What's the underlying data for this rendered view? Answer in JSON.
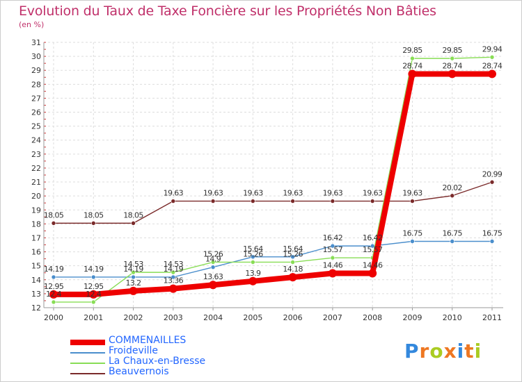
{
  "chart_data": {
    "type": "line",
    "title": "Evolution du Taux de Taxe Foncière sur les Propriétés Non Bâties",
    "unit_label": "(en %)",
    "categories": [
      "2000",
      "2001",
      "2002",
      "2003",
      "2004",
      "2005",
      "2006",
      "2007",
      "2008",
      "2009",
      "2010",
      "2011"
    ],
    "ylim": [
      12,
      31
    ],
    "yticks": [
      "12",
      "13",
      "14",
      "15",
      "16",
      "17",
      "18",
      "19",
      "20",
      "21",
      "22",
      "23",
      "24",
      "25",
      "26",
      "27",
      "28",
      "29",
      "30",
      "31"
    ],
    "series": [
      {
        "name": "Beauvernois",
        "color": "#7a2a2a",
        "values": [
          18.05,
          18.05,
          18.05,
          19.63,
          19.63,
          19.63,
          19.63,
          19.63,
          19.63,
          19.63,
          20.02,
          20.99
        ],
        "labels": [
          "18.05",
          "18.05",
          "18.05",
          "19.63",
          "19.63",
          "19.63",
          "19.63",
          "19.63",
          "19.63",
          "19.63",
          "20.02",
          "20.99"
        ]
      },
      {
        "name": "Froideville",
        "color": "#4a8ecc",
        "values": [
          14.19,
          14.19,
          14.19,
          14.19,
          14.9,
          15.64,
          15.64,
          16.42,
          16.42,
          16.75,
          16.75,
          16.75
        ],
        "labels": [
          "14.19",
          "14.19",
          "14.19",
          "14.19",
          "14.9",
          "15.64",
          "15.64",
          "16.42",
          "16.42",
          "16.75",
          "16.75",
          "16.75"
        ]
      },
      {
        "name": "La Chaux-en-Bresse",
        "color": "#88dd55",
        "values": [
          12.4,
          12.4,
          14.53,
          14.53,
          15.26,
          15.26,
          15.26,
          15.57,
          15.57,
          29.85,
          29.85,
          29.94
        ],
        "labels": [
          "12.4",
          "12.4",
          "14.53",
          "14.53",
          "15.26",
          "15.26",
          "15.26",
          "15.57",
          "15.57",
          "29.85",
          "29.85",
          "29.94"
        ]
      },
      {
        "name": "COMMENAILLES",
        "color": "#ee0000",
        "values": [
          12.95,
          12.95,
          13.2,
          13.36,
          13.63,
          13.9,
          14.18,
          14.46,
          14.46,
          28.74,
          28.74,
          28.74
        ],
        "labels": [
          "12.95",
          "12.95",
          "13.2",
          "13.36",
          "13.63",
          "13.9",
          "14.18",
          "14.46",
          "14.46",
          "28.74",
          "28.74",
          "28.74"
        ]
      }
    ],
    "legend": [
      {
        "name": "COMMENAILLES",
        "color": "#ee0000",
        "thick": true
      },
      {
        "name": "Froideville",
        "color": "#4a8ecc",
        "thick": false
      },
      {
        "name": "La Chaux-en-Bresse",
        "color": "#88dd55",
        "thick": false
      },
      {
        "name": "Beauvernois",
        "color": "#7a2a2a",
        "thick": false
      }
    ]
  },
  "watermark": {
    "text": "Prox",
    "icon_char": "i",
    "text2": "ti",
    "letter_colors": [
      "#3388dd",
      "#ee7722",
      "#aacc22",
      "#3388dd",
      "#ee7722",
      "#aacc22",
      "#3388dd"
    ]
  }
}
